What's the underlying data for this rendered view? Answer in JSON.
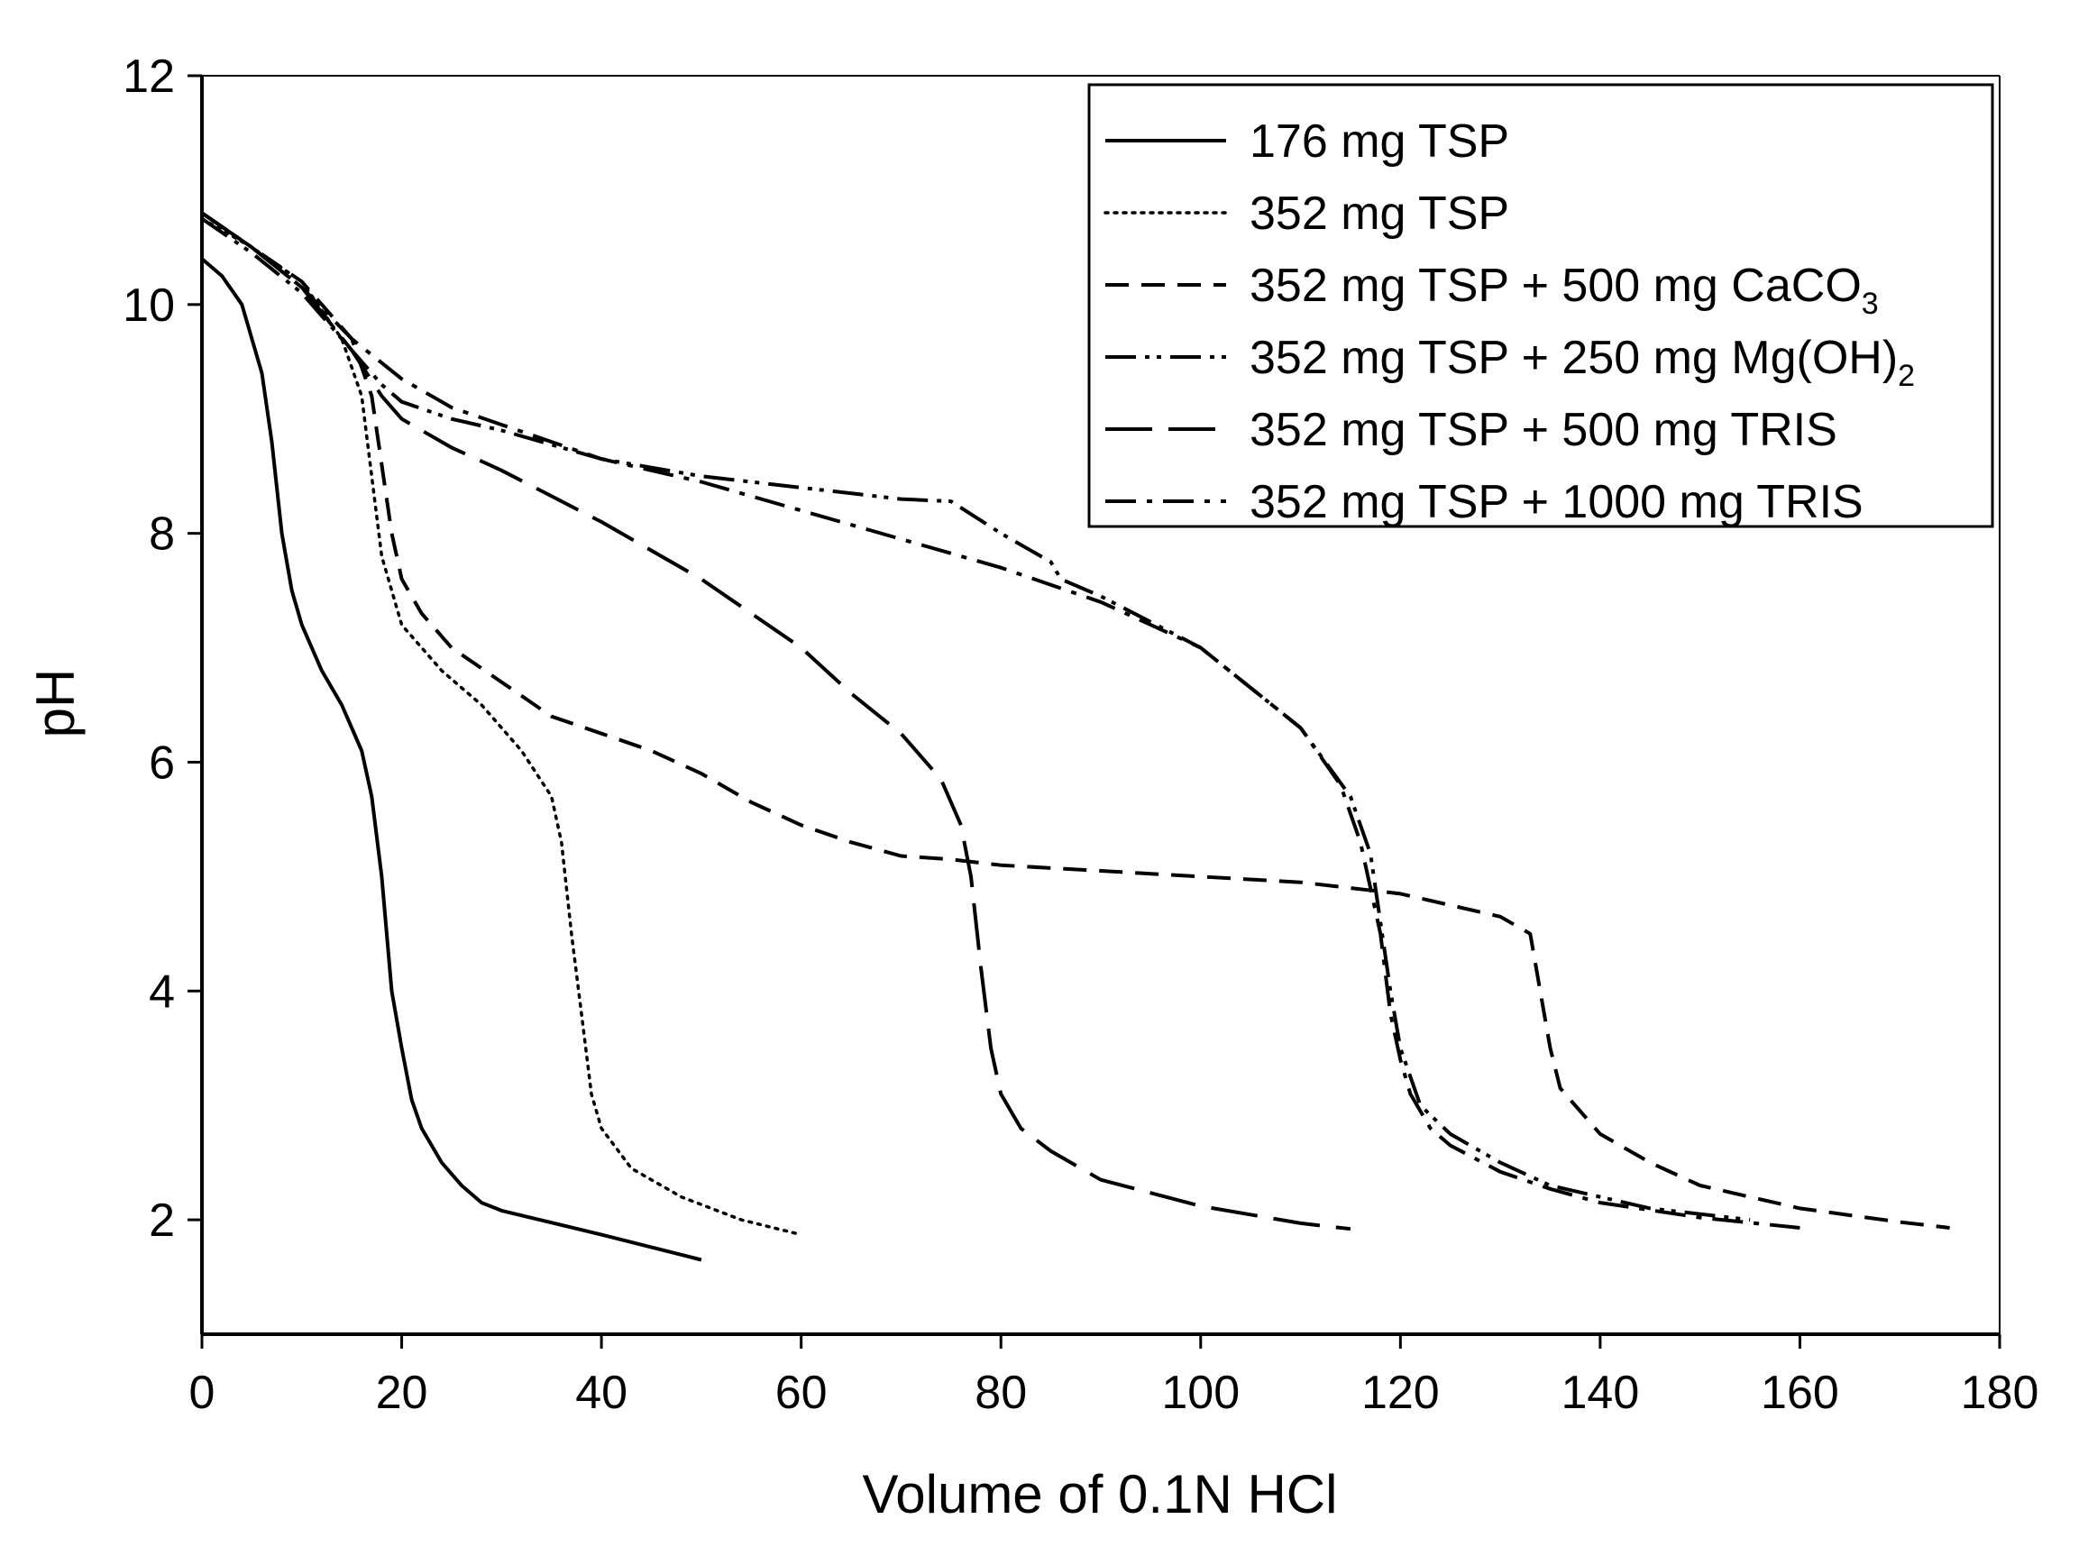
{
  "chart_data": {
    "type": "line",
    "title": "",
    "xlabel": "Volume of 0.1N HCl",
    "ylabel": "pH",
    "xlim": [
      0,
      180
    ],
    "ylim": [
      1,
      12
    ],
    "xticks": [
      0,
      20,
      40,
      60,
      80,
      100,
      120,
      140,
      160,
      180
    ],
    "yticks": [
      2,
      4,
      6,
      8,
      10,
      12
    ],
    "grid": false,
    "legend_position": "top-right",
    "series": [
      {
        "name": "176 mg TSP",
        "name_parts": [
          "176 mg TSP"
        ],
        "style": "solid",
        "x": [
          0,
          2,
          4,
          6,
          7,
          8,
          9,
          10,
          12,
          14,
          16,
          17,
          18,
          19,
          20,
          21,
          22,
          24,
          26,
          28,
          30,
          40,
          50
        ],
        "y": [
          10.4,
          10.25,
          10.0,
          9.4,
          8.8,
          8.0,
          7.5,
          7.2,
          6.8,
          6.5,
          6.1,
          5.7,
          5.0,
          4.0,
          3.5,
          3.05,
          2.8,
          2.5,
          2.3,
          2.15,
          2.08,
          1.87,
          1.65
        ]
      },
      {
        "name": "352 mg TSP",
        "name_parts": [
          "352 mg TSP"
        ],
        "style": "dotted",
        "x": [
          0,
          5,
          10,
          14,
          16,
          17,
          18,
          20,
          24,
          28,
          32,
          35,
          36,
          37,
          38,
          39,
          40,
          43,
          48,
          54,
          60
        ],
        "y": [
          10.75,
          10.5,
          10.2,
          9.7,
          9.2,
          8.5,
          7.8,
          7.2,
          6.8,
          6.5,
          6.1,
          5.7,
          5.3,
          4.5,
          3.8,
          3.1,
          2.8,
          2.45,
          2.2,
          2.0,
          1.87
        ]
      },
      {
        "name": "352 mg TSP + 500 mg CaCO3",
        "name_parts": [
          "352 mg TSP + 500 mg CaCO",
          "3"
        ],
        "style": "dashed",
        "x": [
          0,
          5,
          10,
          15,
          17,
          18,
          19,
          20,
          22,
          25,
          30,
          35,
          40,
          45,
          50,
          55,
          60,
          65,
          70,
          75,
          80,
          90,
          100,
          110,
          120,
          130,
          133,
          134,
          135,
          136,
          138,
          140,
          145,
          150,
          160,
          170,
          175
        ],
        "y": [
          10.8,
          10.5,
          10.2,
          9.7,
          9.2,
          8.6,
          8.0,
          7.6,
          7.3,
          7.0,
          6.7,
          6.4,
          6.25,
          6.1,
          5.9,
          5.65,
          5.45,
          5.3,
          5.18,
          5.15,
          5.1,
          5.05,
          5.0,
          4.95,
          4.85,
          4.65,
          4.5,
          4.0,
          3.5,
          3.15,
          2.95,
          2.75,
          2.5,
          2.3,
          2.1,
          1.98,
          1.93
        ]
      },
      {
        "name": "352 mg TSP + 250 mg Mg(OH)2",
        "name_parts": [
          "352 mg TSP + 250 mg Mg(OH)",
          "2"
        ],
        "style": "dash-dot-dot",
        "x": [
          0,
          5,
          10,
          15,
          18,
          20,
          25,
          30,
          40,
          50,
          60,
          70,
          75,
          80,
          85,
          86,
          90,
          100,
          110,
          115,
          117,
          118,
          119,
          120,
          122,
          125,
          130,
          135,
          140,
          145,
          150,
          155
        ],
        "y": [
          10.75,
          10.45,
          10.1,
          9.6,
          9.3,
          9.15,
          9.0,
          8.9,
          8.65,
          8.5,
          8.4,
          8.3,
          8.28,
          8.0,
          7.75,
          7.6,
          7.45,
          7.0,
          6.3,
          5.7,
          5.2,
          4.6,
          4.0,
          3.5,
          3.0,
          2.75,
          2.5,
          2.3,
          2.2,
          2.1,
          2.05,
          2.0
        ]
      },
      {
        "name": "352 mg TSP + 500 mg TRIS",
        "name_parts": [
          "352 mg TSP + 500 mg TRIS"
        ],
        "style": "long-dash",
        "x": [
          0,
          5,
          10,
          15,
          18,
          20,
          25,
          30,
          40,
          50,
          60,
          65,
          70,
          74,
          76,
          77,
          78,
          79,
          80,
          82,
          85,
          90,
          100,
          110,
          115
        ],
        "y": [
          10.8,
          10.5,
          10.15,
          9.6,
          9.2,
          9.0,
          8.75,
          8.55,
          8.1,
          7.6,
          7.0,
          6.6,
          6.25,
          5.85,
          5.45,
          5.0,
          4.2,
          3.5,
          3.1,
          2.8,
          2.6,
          2.35,
          2.12,
          1.97,
          1.92
        ]
      },
      {
        "name": "352 mg TSP + 1000 mg TRIS",
        "name_parts": [
          "352 mg TSP + 1000 mg TRIS"
        ],
        "style": "dash-dot",
        "x": [
          0,
          5,
          10,
          15,
          20,
          25,
          30,
          40,
          50,
          60,
          70,
          80,
          90,
          100,
          110,
          114,
          116,
          118,
          119,
          120,
          121,
          123,
          125,
          130,
          135,
          140,
          150,
          160
        ],
        "y": [
          10.8,
          10.5,
          10.15,
          9.7,
          9.35,
          9.1,
          8.95,
          8.65,
          8.45,
          8.2,
          7.95,
          7.7,
          7.4,
          7.0,
          6.3,
          5.8,
          5.3,
          4.5,
          3.8,
          3.4,
          3.1,
          2.8,
          2.65,
          2.42,
          2.27,
          2.15,
          2.02,
          1.93
        ]
      }
    ]
  }
}
